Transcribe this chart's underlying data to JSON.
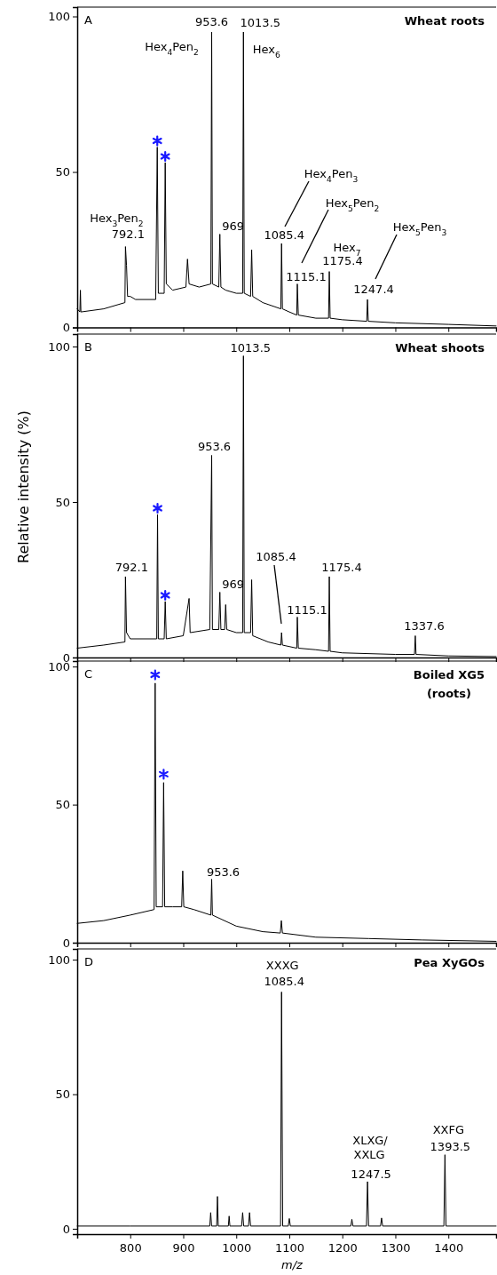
{
  "chart_data": [
    {
      "type": "line",
      "title": "Wheat roots",
      "xlim": [
        700,
        1490
      ],
      "xticks": [
        800,
        900,
        1000,
        1100,
        1200,
        1300,
        1400
      ],
      "ylim": [
        0,
        103
      ],
      "yticks": [
        0,
        50,
        100
      ],
      "tick_labels": "y",
      "series": [
        {
          "color": "#000000",
          "x": [
            700,
            705,
            706,
            707,
            750,
            790,
            791,
            793,
            795,
            800,
            810,
            848,
            851,
            853,
            864,
            866,
            868,
            880,
            905,
            908,
            911,
            930,
            952,
            953.6,
            955,
            967,
            969,
            971,
            980,
            1000,
            1012,
            1013.5,
            1015,
            1027,
            1029,
            1031,
            1050,
            1084,
            1085.4,
            1087,
            1100,
            1114,
            1115.1,
            1117,
            1150,
            1174,
            1175.4,
            1177,
            1200,
            1246,
            1247.4,
            1249,
            1300,
            1400,
            1490
          ],
          "values": [
            6,
            5,
            12,
            5,
            6,
            8,
            26,
            20,
            10,
            10,
            9,
            9,
            58,
            11,
            11,
            53,
            14,
            12,
            13,
            22,
            14,
            13,
            14,
            95,
            14,
            13,
            30,
            13,
            12,
            11,
            11,
            95,
            11,
            10,
            25,
            10,
            8,
            6,
            27,
            6,
            5,
            4,
            14,
            4,
            3,
            3,
            18,
            3,
            2.5,
            2,
            9,
            2,
            1.5,
            1,
            0.5
          ]
        },
        {
          "type": "scatter",
          "color": "#1a1aff",
          "x": [
            851,
            866
          ],
          "values": [
            60,
            55
          ]
        }
      ],
      "annotations": [
        "A",
        {
          "text": "953.6",
          "x": 953.6,
          "y": 95
        },
        {
          "text": "Hex$_{4}$Pen$_{2}$",
          "x": 953.6,
          "y": 95
        },
        {
          "text": "1013.5",
          "x": 1013.5,
          "y": 95
        },
        {
          "text": "Hex$_{6}$",
          "x": 1013.5,
          "y": 95
        },
        {
          "text": "792.1",
          "x": 791,
          "y": 26
        },
        {
          "text": "Hex$_{3}$Pen$_{2}$",
          "x": 791,
          "y": 26
        },
        {
          "text": "969",
          "x": 969,
          "y": 30
        },
        {
          "text": "1085.4",
          "x": 1085.4,
          "y": 27
        },
        "Hex$_{4}$Pen$_{3}$",
        {
          "text": "1115.1",
          "x": 1115.1,
          "y": 14
        },
        "Hex$_{5}$Pen$_{2}$",
        {
          "text": "1175.4",
          "x": 1175.4,
          "y": 18
        },
        {
          "text": "Hex$_{7}$",
          "x": 1175.4,
          "y": 18
        },
        {
          "text": "1247.4",
          "x": 1247.4,
          "y": 9
        },
        "Hex$_{5}$Pen$_{3}$"
      ]
    },
    {
      "type": "line",
      "title": "Wheat shoots",
      "ylabel": "Relative intensity (%)",
      "xlim": [
        700,
        1490
      ],
      "xticks": [
        800,
        900,
        1000,
        1100,
        1200,
        1300,
        1400
      ],
      "ylim": [
        0,
        104
      ],
      "yticks": [
        0,
        50,
        100
      ],
      "tick_labels": "y",
      "series": [
        {
          "color": "#000000",
          "x": [
            700,
            750,
            790,
            791,
            793,
            800,
            850,
            851.5,
            853,
            864,
            866,
            868,
            900,
            911,
            913,
            950,
            953.6,
            955,
            967,
            969,
            971,
            978,
            980,
            982,
            1000,
            1012,
            1013.5,
            1015,
            1027,
            1029,
            1031,
            1060,
            1084,
            1085.4,
            1087,
            1114,
            1115.1,
            1117,
            1150,
            1174,
            1175.4,
            1177,
            1200,
            1300,
            1336,
            1337.6,
            1339,
            1400,
            1490
          ],
          "values": [
            3,
            4,
            5,
            26,
            8,
            6,
            6,
            46,
            6,
            6,
            18,
            6,
            7,
            19,
            8,
            9,
            65,
            9,
            9,
            21,
            9,
            9,
            17,
            9,
            8,
            8,
            97,
            8,
            8,
            25,
            7,
            5,
            4,
            8,
            4,
            3,
            13,
            3,
            2.5,
            2,
            26,
            2,
            1.5,
            1,
            1,
            7,
            1,
            0.5,
            0.3
          ]
        },
        {
          "type": "scatter",
          "color": "#1a1aff",
          "x": [
            851.5,
            866
          ],
          "values": [
            48,
            20
          ]
        }
      ],
      "annotations": [
        "B",
        {
          "text": "1013.5",
          "x": 1013.5,
          "y": 97
        },
        {
          "text": "953.6",
          "x": 953.6,
          "y": 65
        },
        {
          "text": "792.1",
          "x": 791,
          "y": 26
        },
        {
          "text": "969",
          "x": 969,
          "y": 21
        },
        "1085.4",
        {
          "text": "1115.1",
          "x": 1115.1,
          "y": 13
        },
        {
          "text": "1175.4",
          "x": 1175.4,
          "y": 26
        },
        {
          "text": "1337.6",
          "x": 1337.6,
          "y": 7
        }
      ]
    },
    {
      "type": "line",
      "title": "Boiled XG5 (roots)",
      "xlim": [
        700,
        1490
      ],
      "xticks": [
        800,
        900,
        1000,
        1100,
        1200,
        1300,
        1400
      ],
      "ylim": [
        0,
        102
      ],
      "yticks": [
        0,
        50,
        100
      ],
      "tick_labels": "y",
      "series": [
        {
          "color": "#000000",
          "x": [
            700,
            750,
            800,
            845,
            847,
            849,
            861,
            863,
            865,
            880,
            897,
            899,
            901,
            920,
            952,
            953.6,
            955,
            1000,
            1050,
            1083,
            1085,
            1087,
            1150,
            1250,
            1350,
            1490
          ],
          "values": [
            7,
            8,
            10,
            12,
            94,
            13,
            13,
            58,
            13,
            13,
            13,
            26,
            13,
            12,
            10,
            23,
            10,
            6,
            4,
            3.5,
            8,
            3.5,
            2,
            1.5,
            1,
            0.5
          ]
        },
        {
          "type": "scatter",
          "color": "#1a1aff",
          "x": [
            847,
            863
          ],
          "values": [
            97,
            61
          ]
        }
      ],
      "annotations": [
        "C",
        {
          "text": "953.6",
          "x": 953.6,
          "y": 23
        }
      ]
    },
    {
      "type": "line",
      "title": "Pea XyGOs",
      "xlabel": "m/z",
      "xlim": [
        700,
        1490
      ],
      "xticks": [
        800,
        900,
        1000,
        1100,
        1200,
        1300,
        1400
      ],
      "ylim": [
        -2,
        104
      ],
      "yticks": [
        0,
        50,
        100
      ],
      "series": [
        {
          "color": "#000000",
          "x": [
            700,
            800,
            950,
            951.7,
            953.5,
            963,
            964.5,
            966,
            985,
            986.5,
            988,
            1010,
            1012,
            1014,
            1023,
            1025,
            1027,
            1083.5,
            1085.4,
            1087.5,
            1098,
            1100,
            1102,
            1216,
            1218,
            1220,
            1245.5,
            1247.5,
            1249.5,
            1272,
            1274,
            1276,
            1391.5,
            1393.5,
            1395.5,
            1490
          ],
          "values": [
            1,
            1,
            1,
            6,
            1,
            1,
            12,
            1,
            1,
            4.7,
            1,
            1,
            6,
            1,
            1,
            6,
            1,
            1,
            88,
            1,
            1,
            3.8,
            1,
            1,
            3.5,
            1,
            1,
            17.5,
            1,
            1,
            4,
            1,
            1,
            27.5,
            1,
            1
          ]
        }
      ],
      "annotations": [
        "D",
        {
          "text": "1085.4",
          "x": 1085.4,
          "y": 88
        },
        {
          "text": "XXXG",
          "x": 1085.4,
          "y": 88
        },
        {
          "text": "1247.5",
          "x": 1247.5,
          "y": 17.5
        },
        "XLXG/",
        {
          "text": "XXLG",
          "x": 1247.5,
          "y": 17.5
        },
        {
          "text": "1393.5",
          "x": 1393.5,
          "y": 27.5
        },
        {
          "text": "XXFG",
          "x": 1393.5,
          "y": 27.5
        }
      ]
    }
  ]
}
